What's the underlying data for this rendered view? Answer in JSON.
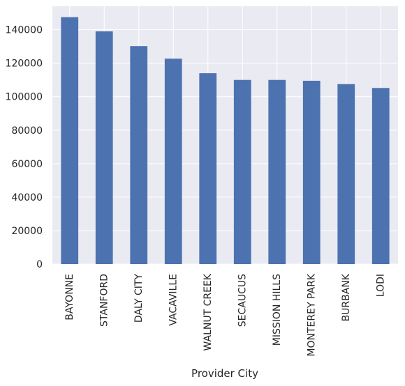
{
  "chart_data": {
    "type": "bar",
    "title": "",
    "xlabel": "Provider City",
    "ylabel": "",
    "categories": [
      "BAYONNE",
      "STANFORD",
      "DALY CITY",
      "VACAVILLE",
      "WALNUT CREEK",
      "SECAUCUS",
      "MISSION HILLS",
      "MONTEREY PARK",
      "BURBANK",
      "LODI"
    ],
    "values": [
      147500,
      139000,
      130200,
      122700,
      114000,
      110000,
      110000,
      109500,
      107500,
      105200
    ],
    "ylim": [
      0,
      154000
    ],
    "yticks": [
      0,
      20000,
      40000,
      60000,
      80000,
      100000,
      120000,
      140000
    ],
    "grid": true,
    "style": {
      "bar_color": "#4c72b0",
      "plot_background": "#eaeaf2",
      "grid_color": "#ffffff"
    }
  }
}
